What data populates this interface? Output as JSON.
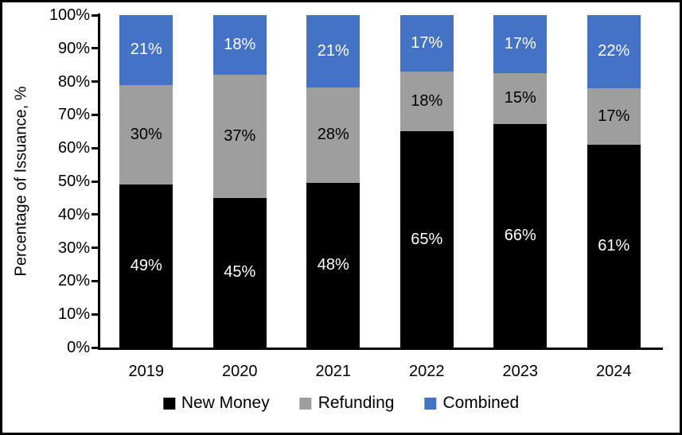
{
  "chart_data": {
    "type": "bar",
    "subtype": "stacked-100",
    "title": "",
    "xlabel": "",
    "ylabel": "Percentage of Issuance, %",
    "categories": [
      "2019",
      "2020",
      "2021",
      "2022",
      "2023",
      "2024"
    ],
    "series": [
      {
        "name": "New Money",
        "color": "#000000",
        "label_color": "#ffffff",
        "values": [
          49,
          45,
          48,
          65,
          66,
          61
        ]
      },
      {
        "name": "Refunding",
        "color": "#9E9E9E",
        "label_color": "#000000",
        "values": [
          30,
          37,
          28,
          18,
          15,
          17
        ]
      },
      {
        "name": "Combined",
        "color": "#4472C4",
        "label_color": "#ffffff",
        "values": [
          21,
          18,
          21,
          17,
          17,
          22
        ]
      }
    ],
    "value_suffix": "%",
    "y_ticks": [
      "0%",
      "10%",
      "20%",
      "30%",
      "40%",
      "50%",
      "60%",
      "70%",
      "80%",
      "90%",
      "100%"
    ],
    "ylim": [
      0,
      100
    ],
    "grid": false,
    "legend_position": "bottom",
    "axis_color": "#000000",
    "background_color": "#ffffff"
  }
}
